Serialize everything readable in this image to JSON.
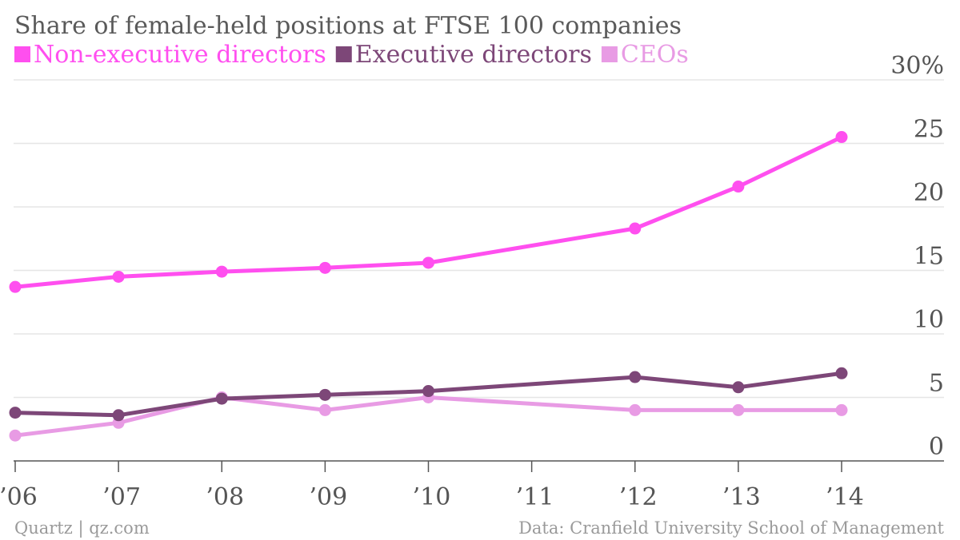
{
  "chart_data": {
    "type": "line",
    "title": "Share of female-held positions at FTSE 100 companies",
    "x": [
      2006,
      2007,
      2008,
      2009,
      2010,
      2011,
      2012,
      2013,
      2014
    ],
    "x_tick_labels": [
      "’06",
      "’07",
      "’08",
      "’09",
      "’10",
      "’11",
      "’12",
      "’13",
      "’14"
    ],
    "ylim": [
      0,
      30
    ],
    "y_ticks": [
      0,
      5,
      10,
      15,
      20,
      25,
      30
    ],
    "y_tick_labels": [
      "0",
      "5",
      "10",
      "15",
      "20",
      "25",
      "30%"
    ],
    "grid": true,
    "legend_placement": "top-left",
    "series": [
      {
        "name": "Non-executive directors",
        "color": "#ff4fef",
        "points": [
          [
            2006,
            13.7
          ],
          [
            2007,
            14.5
          ],
          [
            2008,
            14.9
          ],
          [
            2009,
            15.2
          ],
          [
            2010,
            15.6
          ],
          [
            2012,
            18.3
          ],
          [
            2013,
            21.6
          ],
          [
            2014,
            25.5
          ]
        ]
      },
      {
        "name": "Executive directors",
        "color": "#7d4778",
        "points": [
          [
            2006,
            3.8
          ],
          [
            2007,
            3.6
          ],
          [
            2008,
            4.9
          ],
          [
            2009,
            5.2
          ],
          [
            2010,
            5.5
          ],
          [
            2012,
            6.6
          ],
          [
            2013,
            5.8
          ],
          [
            2014,
            6.9
          ]
        ]
      },
      {
        "name": "CEOs",
        "color": "#e89be4",
        "points": [
          [
            2006,
            2.0
          ],
          [
            2007,
            3.0
          ],
          [
            2008,
            5.0
          ],
          [
            2009,
            4.0
          ],
          [
            2010,
            5.0
          ],
          [
            2012,
            4.0
          ],
          [
            2013,
            4.0
          ],
          [
            2014,
            4.0
          ]
        ]
      }
    ]
  },
  "footer": {
    "source_left": "Quartz | qz.com",
    "source_right": "Data: Cranfield University School of Management"
  }
}
